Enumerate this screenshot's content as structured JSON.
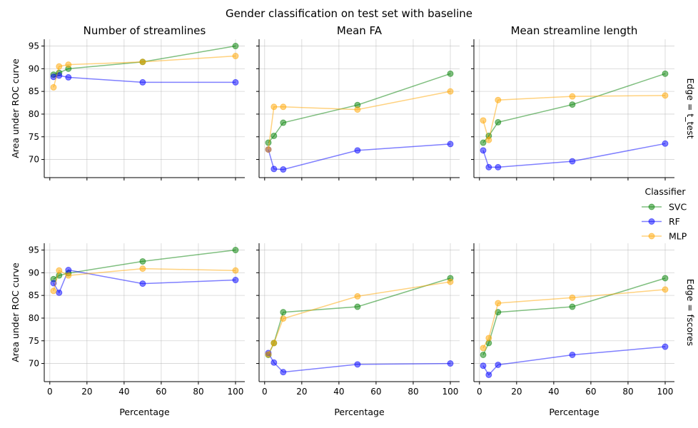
{
  "suptitle": "Gender classification on test set with baseline",
  "col_titles": [
    "Number of streamlines",
    "Mean FA",
    "Mean streamline length"
  ],
  "row_titles": [
    "Edge = t_test",
    "Edge = fscores"
  ],
  "xlabel": "Percentage",
  "ylabel": "Area under ROC curve",
  "legend": {
    "title": "Classifier",
    "items": [
      "SVC",
      "RF",
      "MLP"
    ]
  },
  "colors": {
    "SVC": "#008000",
    "RF": "#0000ff",
    "MLP": "#ffa500"
  },
  "chart_data": {
    "type": "line",
    "grid": true,
    "legend_position": "right",
    "x": [
      2,
      5,
      10,
      50,
      100
    ],
    "xlim": [
      -3,
      105
    ],
    "ylim": [
      66,
      96.5
    ],
    "xticks": [
      0,
      20,
      40,
      60,
      80,
      100
    ],
    "yticks": [
      70,
      75,
      80,
      85,
      90,
      95
    ],
    "panels": [
      {
        "row": "Edge = t_test",
        "col": "Number of streamlines",
        "series": [
          {
            "name": "SVC",
            "values": [
              88.7,
              89.1,
              90.0,
              91.5,
              95.0
            ]
          },
          {
            "name": "RF",
            "values": [
              88.2,
              88.5,
              88.1,
              87.0,
              87.0
            ]
          },
          {
            "name": "MLP",
            "values": [
              85.9,
              90.5,
              90.9,
              91.5,
              92.8
            ]
          }
        ]
      },
      {
        "row": "Edge = t_test",
        "col": "Mean FA",
        "series": [
          {
            "name": "SVC",
            "values": [
              73.7,
              75.2,
              78.1,
              82.0,
              88.9
            ]
          },
          {
            "name": "RF",
            "values": [
              72.2,
              67.9,
              67.8,
              72.0,
              73.4
            ]
          },
          {
            "name": "MLP",
            "values": [
              72.2,
              81.6,
              81.6,
              81.0,
              85.0
            ]
          }
        ]
      },
      {
        "row": "Edge = t_test",
        "col": "Mean streamline length",
        "series": [
          {
            "name": "SVC",
            "values": [
              73.7,
              75.2,
              78.2,
              82.1,
              88.9
            ]
          },
          {
            "name": "RF",
            "values": [
              72.0,
              68.3,
              68.3,
              69.6,
              73.5
            ]
          },
          {
            "name": "MLP",
            "values": [
              78.6,
              74.3,
              83.1,
              83.9,
              84.1
            ]
          }
        ]
      },
      {
        "row": "Edge = fscores",
        "col": "Number of streamlines",
        "series": [
          {
            "name": "SVC",
            "values": [
              88.6,
              89.4,
              89.9,
              92.5,
              95.0
            ]
          },
          {
            "name": "RF",
            "values": [
              87.7,
              85.6,
              90.6,
              87.6,
              88.4
            ]
          },
          {
            "name": "MLP",
            "values": [
              86.0,
              90.5,
              89.4,
              90.9,
              90.5
            ]
          }
        ]
      },
      {
        "row": "Edge = fscores",
        "col": "Mean FA",
        "series": [
          {
            "name": "SVC",
            "values": [
              71.9,
              74.5,
              81.3,
              82.5,
              88.8
            ]
          },
          {
            "name": "RF",
            "values": [
              72.3,
              70.2,
              68.1,
              69.8,
              70.0
            ]
          },
          {
            "name": "MLP",
            "values": [
              72.0,
              74.5,
              79.9,
              84.8,
              88.0
            ]
          }
        ]
      },
      {
        "row": "Edge = fscores",
        "col": "Mean streamline length",
        "series": [
          {
            "name": "SVC",
            "values": [
              71.9,
              74.5,
              81.3,
              82.5,
              88.8
            ]
          },
          {
            "name": "RF",
            "values": [
              69.5,
              67.5,
              69.7,
              71.9,
              73.7
            ]
          },
          {
            "name": "MLP",
            "values": [
              73.4,
              75.6,
              83.3,
              84.5,
              86.3
            ]
          }
        ]
      }
    ]
  }
}
